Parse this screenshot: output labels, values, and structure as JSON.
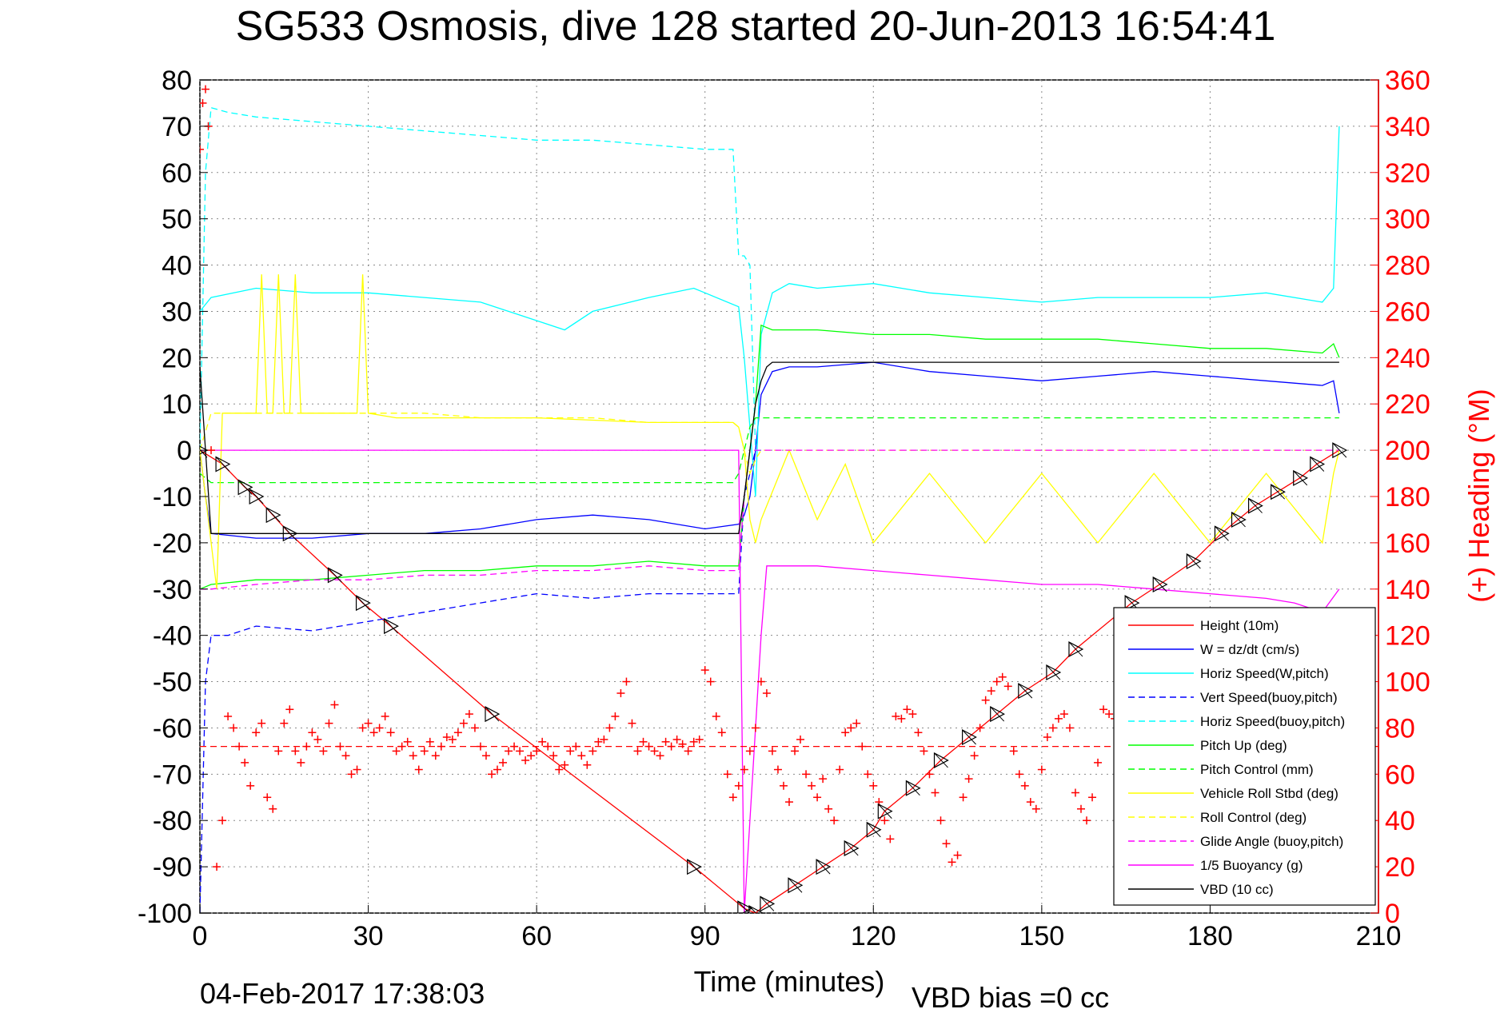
{
  "title": "SG533 Osmosis, dive 128 started 20-Jun-2013 16:54:41",
  "footer": {
    "timestamp": "04-Feb-2017 17:38:03",
    "vbd_bias": "VBD bias =0 cc"
  },
  "colors": {
    "height": "#ff0000",
    "w": "#0000ff",
    "horiz_speed": "#00ffff",
    "pitch": "#00ff00",
    "roll": "#ffff00",
    "glide": "#ff00ff",
    "vbd": "#000000",
    "heading": "#ff0000"
  },
  "chart_data": {
    "type": "line",
    "xlabel": "Time (minutes)",
    "ylabel": "",
    "y2label": "(+) Heading (°M)",
    "xlim": [
      0,
      210
    ],
    "ylim": [
      -100,
      80
    ],
    "y2lim": [
      0,
      360
    ],
    "xticks": [
      0,
      30,
      60,
      90,
      120,
      150,
      180,
      210
    ],
    "yticks": [
      -100,
      -90,
      -80,
      -70,
      -60,
      -50,
      -40,
      -30,
      -20,
      -10,
      0,
      10,
      20,
      30,
      40,
      50,
      60,
      70,
      80
    ],
    "y2ticks": [
      0,
      20,
      40,
      60,
      80,
      100,
      120,
      140,
      160,
      180,
      200,
      220,
      240,
      260,
      280,
      300,
      320,
      340,
      360
    ],
    "grid": true,
    "legend_position": "bottom-right",
    "series": [
      {
        "name": "Height (10m)",
        "color": "#ff0000",
        "style": "solid",
        "marker": "triangle",
        "x": [
          0,
          4,
          8,
          10,
          13,
          16,
          24,
          29,
          34,
          52,
          88,
          97,
          99,
          101,
          106,
          111,
          116,
          120,
          122,
          127,
          132,
          137,
          142,
          147,
          152,
          156,
          166,
          171,
          177,
          182,
          185,
          188,
          192,
          196,
          199,
          203
        ],
        "y": [
          0,
          -3,
          -8,
          -10,
          -14,
          -18,
          -27,
          -33,
          -38,
          -57,
          -90,
          -99,
          -100,
          -98,
          -94,
          -90,
          -86,
          -82,
          -78,
          -73,
          -67,
          -62,
          -57,
          -52,
          -48,
          -43,
          -33,
          -29,
          -24,
          -18,
          -15,
          -12,
          -9,
          -6,
          -3,
          0
        ]
      },
      {
        "name": "W = dz/dt (cm/s)",
        "color": "#0000ff",
        "style": "solid",
        "x": [
          0,
          1,
          2,
          10,
          20,
          30,
          40,
          50,
          60,
          70,
          80,
          90,
          96,
          97,
          98,
          99,
          100,
          102,
          105,
          110,
          120,
          130,
          140,
          150,
          160,
          170,
          180,
          190,
          200,
          202,
          203
        ],
        "y": [
          0,
          -10,
          -18,
          -19,
          -19,
          -18,
          -18,
          -17,
          -15,
          -14,
          -15,
          -17,
          -16,
          -14,
          -10,
          0,
          12,
          17,
          18,
          18,
          19,
          17,
          16,
          15,
          16,
          17,
          16,
          15,
          14,
          15,
          8
        ]
      },
      {
        "name": "Horiz Speed(W,pitch)",
        "color": "#00ffff",
        "style": "solid",
        "x": [
          0,
          2,
          10,
          20,
          30,
          40,
          50,
          60,
          65,
          70,
          80,
          88,
          96,
          97,
          98,
          99,
          100,
          102,
          105,
          110,
          120,
          130,
          140,
          150,
          160,
          170,
          180,
          190,
          200,
          202,
          203
        ],
        "y": [
          30,
          33,
          35,
          34,
          34,
          33,
          32,
          28,
          26,
          30,
          33,
          35,
          31,
          20,
          5,
          -10,
          25,
          34,
          36,
          35,
          36,
          34,
          33,
          32,
          33,
          33,
          33,
          34,
          32,
          35,
          70
        ]
      },
      {
        "name": "Vert Speed(buoy,pitch)",
        "color": "#0000ff",
        "style": "dashed",
        "x": [
          0,
          1,
          2,
          5,
          10,
          20,
          30,
          40,
          50,
          60,
          70,
          80,
          90,
          96,
          97,
          98,
          99,
          100
        ],
        "y": [
          -100,
          -50,
          -40,
          -40,
          -38,
          -39,
          -37,
          -35,
          -33,
          -31,
          -32,
          -31,
          -31,
          -31,
          -10,
          -5,
          0,
          0
        ]
      },
      {
        "name": "Horiz Speed(buoy,pitch)",
        "color": "#00ffff",
        "style": "dashed",
        "x": [
          0,
          1,
          2,
          5,
          10,
          20,
          30,
          40,
          50,
          60,
          70,
          80,
          90,
          95,
          96,
          97,
          98,
          99,
          100
        ],
        "y": [
          0,
          60,
          74,
          73,
          72,
          71,
          70,
          69,
          68,
          67,
          67,
          66,
          65,
          65,
          42,
          42,
          40,
          0,
          0
        ]
      },
      {
        "name": "Pitch Up (deg)",
        "color": "#00ff00",
        "style": "solid",
        "x": [
          0,
          2,
          10,
          20,
          30,
          40,
          50,
          60,
          70,
          80,
          90,
          96,
          97,
          98,
          99,
          100,
          102,
          110,
          120,
          130,
          140,
          150,
          160,
          170,
          180,
          190,
          200,
          202,
          203
        ],
        "y": [
          -30,
          -29,
          -28,
          -28,
          -27,
          -26,
          -26,
          -25,
          -25,
          -24,
          -25,
          -25,
          -10,
          0,
          10,
          27,
          26,
          26,
          25,
          25,
          24,
          24,
          24,
          23,
          22,
          22,
          21,
          23,
          20
        ]
      },
      {
        "name": "Pitch Control (mm)",
        "color": "#00ff00",
        "style": "dashed",
        "x": [
          0,
          2,
          95,
          96,
          97,
          98,
          99,
          100,
          203
        ],
        "y": [
          -5,
          -7,
          -7,
          -5,
          0,
          5,
          7,
          7,
          7
        ]
      },
      {
        "name": "Vehicle Roll Stbd (deg)",
        "color": "#ffff00",
        "style": "solid",
        "x": [
          0,
          3,
          4,
          5,
          6,
          7,
          8,
          9,
          10,
          11,
          12,
          13,
          14,
          15,
          16,
          17,
          18,
          20,
          25,
          28,
          29,
          30,
          35,
          50,
          60,
          80,
          90,
          95,
          96,
          97,
          98,
          99,
          100,
          105,
          110,
          115,
          120,
          130,
          140,
          150,
          160,
          170,
          180,
          190,
          200,
          202,
          203
        ],
        "y": [
          0,
          -30,
          8,
          8,
          8,
          8,
          8,
          8,
          8,
          38,
          8,
          8,
          38,
          8,
          8,
          38,
          8,
          8,
          8,
          8,
          38,
          8,
          7,
          7,
          7,
          6,
          6,
          6,
          5,
          0,
          -15,
          -20,
          -15,
          0,
          -15,
          -3,
          -20,
          -5,
          -20,
          -5,
          -20,
          -5,
          -20,
          -5,
          -20,
          -5,
          0
        ]
      },
      {
        "name": "Roll Control (deg)",
        "color": "#ffff00",
        "style": "dashed",
        "x": [
          0,
          2,
          10,
          20,
          30,
          40,
          50,
          60,
          70,
          80,
          90,
          95,
          96,
          97,
          98,
          99,
          100,
          203
        ],
        "y": [
          0,
          8,
          8,
          8,
          8,
          8,
          7,
          7,
          7,
          6,
          6,
          6,
          5,
          0,
          -5,
          -2,
          0,
          0
        ]
      },
      {
        "name": "Glide Angle (buoy,pitch)",
        "color": "#ff00ff",
        "style": "dashed",
        "x": [
          0,
          2,
          10,
          20,
          30,
          40,
          50,
          60,
          70,
          80,
          90,
          96,
          97,
          98,
          99,
          100,
          203
        ],
        "y": [
          -30,
          -30,
          -29,
          -28,
          -28,
          -27,
          -27,
          -26,
          -26,
          -25,
          -26,
          -26,
          -10,
          0,
          0,
          0,
          0
        ]
      },
      {
        "name": "1/5 Buoyancy (g)",
        "color": "#ff00ff",
        "style": "solid",
        "x": [
          0,
          2,
          96,
          97,
          98,
          99,
          100,
          101,
          102,
          110,
          120,
          130,
          140,
          150,
          160,
          170,
          180,
          190,
          195,
          200,
          203
        ],
        "y": [
          0,
          0,
          0,
          -100,
          -80,
          -60,
          -40,
          -25,
          -25,
          -25,
          -26,
          -27,
          -28,
          -29,
          -29,
          -30,
          -31,
          -32,
          -33,
          -35,
          -30
        ]
      },
      {
        "name": "VBD (10 cc)",
        "color": "#000000",
        "style": "solid",
        "x": [
          0,
          1,
          2,
          10,
          20,
          30,
          40,
          50,
          60,
          70,
          80,
          90,
          96,
          97,
          98,
          99,
          100,
          101,
          102,
          110,
          120,
          130,
          140,
          150,
          160,
          170,
          180,
          190,
          200,
          203
        ],
        "y": [
          18,
          0,
          -18,
          -18,
          -18,
          -18,
          -18,
          -18,
          -18,
          -18,
          -18,
          -18,
          -18,
          -10,
          0,
          10,
          15,
          18,
          19,
          19,
          19,
          19,
          19,
          19,
          19,
          19,
          19,
          19,
          19,
          19
        ]
      }
    ],
    "heading": {
      "name": "(+) Heading (°M)",
      "axis": "right",
      "color": "#ff0000",
      "marker": "+",
      "x": [
        0,
        0.5,
        1,
        1.5,
        2,
        3,
        4,
        5,
        6,
        7,
        8,
        9,
        10,
        11,
        12,
        13,
        14,
        15,
        16,
        17,
        18,
        19,
        20,
        21,
        22,
        23,
        24,
        25,
        26,
        27,
        28,
        29,
        30,
        31,
        32,
        33,
        34,
        35,
        36,
        37,
        38,
        39,
        40,
        41,
        42,
        43,
        44,
        45,
        46,
        47,
        48,
        49,
        50,
        51,
        52,
        53,
        54,
        55,
        56,
        57,
        58,
        59,
        60,
        61,
        62,
        63,
        64,
        65,
        66,
        67,
        68,
        69,
        70,
        71,
        72,
        73,
        74,
        75,
        76,
        77,
        78,
        79,
        80,
        81,
        82,
        83,
        84,
        85,
        86,
        87,
        88,
        89,
        90,
        91,
        92,
        93,
        94,
        95,
        96,
        97,
        98,
        99,
        100,
        101,
        102,
        103,
        104,
        105,
        106,
        107,
        108,
        109,
        110,
        111,
        112,
        113,
        114,
        115,
        116,
        117,
        118,
        119,
        120,
        121,
        122,
        123,
        124,
        125,
        126,
        127,
        128,
        129,
        130,
        131,
        132,
        133,
        134,
        135,
        136,
        137,
        138,
        139,
        140,
        141,
        142,
        143,
        144,
        145,
        146,
        147,
        148,
        149,
        150,
        151,
        152,
        153,
        154,
        155,
        156,
        157,
        158,
        159,
        160,
        161,
        162,
        163,
        164,
        165
      ],
      "y": [
        330,
        350,
        356,
        340,
        200,
        20,
        40,
        85,
        80,
        72,
        65,
        55,
        78,
        82,
        50,
        45,
        70,
        82,
        88,
        70,
        65,
        72,
        78,
        75,
        70,
        82,
        90,
        72,
        68,
        60,
        62,
        80,
        82,
        78,
        80,
        85,
        78,
        70,
        72,
        74,
        68,
        62,
        70,
        74,
        68,
        72,
        76,
        75,
        78,
        82,
        86,
        80,
        72,
        68,
        60,
        62,
        65,
        70,
        72,
        70,
        66,
        68,
        70,
        74,
        72,
        68,
        62,
        64,
        70,
        72,
        68,
        64,
        70,
        74,
        75,
        80,
        85,
        95,
        100,
        82,
        70,
        74,
        72,
        70,
        68,
        74,
        72,
        75,
        73,
        70,
        74,
        75,
        105,
        100,
        85,
        78,
        60,
        50,
        55,
        62,
        70,
        80,
        100,
        95,
        70,
        62,
        55,
        48,
        70,
        75,
        60,
        55,
        50,
        58,
        45,
        40,
        62,
        78,
        80,
        82,
        72,
        60,
        55,
        48,
        40,
        32,
        85,
        84,
        88,
        86,
        78,
        70,
        60,
        52,
        40,
        30,
        22,
        25,
        50,
        58,
        68,
        80,
        92,
        96,
        100,
        102,
        98,
        70,
        60,
        55,
        48,
        45,
        62,
        76,
        80,
        84,
        86,
        80,
        52,
        45,
        40,
        50,
        65,
        88,
        86,
        84,
        82,
        80
      ],
      "reference": 72
    }
  }
}
